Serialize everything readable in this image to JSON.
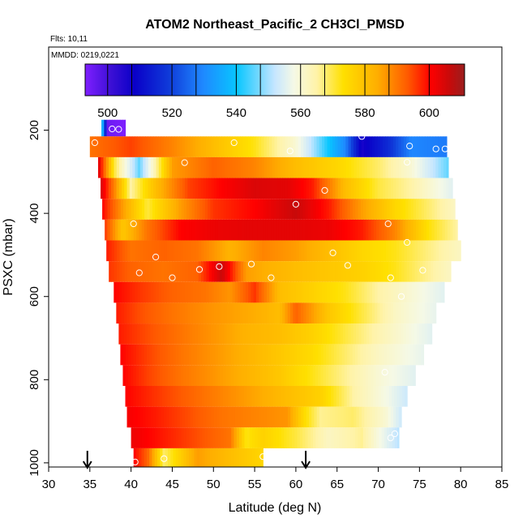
{
  "chart_data": {
    "type": "heatmap",
    "title": "ATOM2 Northeast_Pacific_2 CH3Cl_PMSD",
    "subtitle_flights": "Flts: 10,11",
    "subtitle_dates": "MMDD: 0219,0221",
    "xlabel": "Latitude (deg N)",
    "ylabel": "PSXC (mbar)",
    "xlim": [
      30,
      85
    ],
    "ylim": [
      1010,
      0
    ],
    "x_ticks": [
      "30",
      "35",
      "40",
      "45",
      "50",
      "55",
      "60",
      "65",
      "70",
      "75",
      "80",
      "85"
    ],
    "y_ticks": [
      "200",
      "400",
      "600",
      "800",
      "1000"
    ],
    "colorbar": {
      "range": [
        493,
        611
      ],
      "tick_labels": [
        "500",
        "520",
        "540",
        "560",
        "580",
        "600"
      ],
      "tick_values": [
        500,
        520,
        540,
        560,
        580,
        600
      ]
    },
    "arrows_latitude": [
      34.7,
      61.2
    ],
    "layers": [
      {
        "p_top": 175,
        "p_bot": 215,
        "lat_start": 36.4,
        "lat_end": 39.3,
        "lats": [
          36.4,
          37.2,
          39.3
        ],
        "vals": [
          545,
          495,
          493
        ]
      },
      {
        "p_top": 215,
        "p_bot": 265,
        "lat_start": 35.0,
        "lat_end": 78.3,
        "lats": [
          35,
          40,
          45,
          50,
          55,
          60,
          63,
          66,
          68,
          71,
          74,
          78.3
        ],
        "vals": [
          590,
          595,
          588,
          580,
          572,
          560,
          545,
          530,
          505,
          515,
          530,
          528
        ]
      },
      {
        "p_top": 265,
        "p_bot": 315,
        "lat_start": 36.0,
        "lat_end": 78.5,
        "lats": [
          36,
          38,
          41,
          45,
          50,
          55,
          60,
          65,
          70,
          74,
          78.5
        ],
        "vals": [
          605,
          570,
          545,
          585,
          592,
          588,
          580,
          575,
          568,
          560,
          545
        ]
      },
      {
        "p_top": 315,
        "p_bot": 365,
        "lat_start": 36.3,
        "lat_end": 79.0,
        "lats": [
          36.3,
          38,
          40,
          43,
          47,
          51,
          55,
          59,
          62,
          66,
          70,
          74,
          79
        ],
        "vals": [
          605,
          588,
          565,
          580,
          595,
          600,
          604,
          603,
          598,
          580,
          570,
          565,
          555
        ]
      },
      {
        "p_top": 365,
        "p_bot": 415,
        "lat_start": 36.5,
        "lat_end": 79.3,
        "lats": [
          36.5,
          39,
          42,
          46,
          50,
          55,
          60,
          64,
          68,
          72,
          76,
          79.3
        ],
        "vals": [
          600,
          585,
          570,
          585,
          596,
          600,
          606,
          598,
          585,
          575,
          568,
          562
        ]
      },
      {
        "p_top": 415,
        "p_bot": 465,
        "lat_start": 36.8,
        "lat_end": 79.6,
        "lats": [
          36.8,
          39,
          42,
          46,
          50,
          55,
          60,
          64,
          68,
          72,
          76,
          79.6
        ],
        "vals": [
          596,
          578,
          590,
          600,
          602,
          603,
          603,
          602,
          598,
          588,
          573,
          565
        ]
      },
      {
        "p_top": 465,
        "p_bot": 515,
        "lat_start": 37.0,
        "lat_end": 80.0,
        "lats": [
          37,
          40,
          44,
          48,
          52,
          56,
          60,
          64,
          68,
          72,
          76,
          80
        ],
        "vals": [
          598,
          590,
          592,
          590,
          582,
          588,
          585,
          580,
          575,
          572,
          567,
          562
        ]
      },
      {
        "p_top": 515,
        "p_bot": 565,
        "lat_start": 37.3,
        "lat_end": 78.8,
        "lats": [
          37.3,
          40,
          44,
          48,
          51,
          54,
          57,
          60,
          64,
          68,
          72,
          76,
          78.8
        ],
        "vals": [
          596,
          592,
          590,
          592,
          606,
          585,
          582,
          580,
          578,
          576,
          572,
          566,
          562
        ]
      },
      {
        "p_top": 565,
        "p_bot": 615,
        "lat_start": 37.9,
        "lat_end": 78.0,
        "lats": [
          37.9,
          41,
          45,
          49,
          52,
          55,
          58,
          62,
          66,
          70,
          74,
          78
        ],
        "vals": [
          600,
          596,
          592,
          590,
          586,
          596,
          580,
          576,
          572,
          565,
          560,
          555
        ]
      },
      {
        "p_top": 615,
        "p_bot": 665,
        "lat_start": 38.2,
        "lat_end": 77.0,
        "lats": [
          38.2,
          41,
          45,
          50,
          55,
          58,
          60,
          64,
          68,
          72,
          77
        ],
        "vals": [
          598,
          594,
          590,
          586,
          583,
          580,
          592,
          578,
          570,
          562,
          556
        ]
      },
      {
        "p_top": 665,
        "p_bot": 715,
        "lat_start": 38.5,
        "lat_end": 76.5,
        "lats": [
          38.5,
          42,
          46,
          50,
          54,
          58,
          62,
          66,
          70,
          73,
          76.5
        ],
        "vals": [
          598,
          594,
          590,
          586,
          582,
          580,
          576,
          570,
          564,
          560,
          555
        ]
      },
      {
        "p_top": 715,
        "p_bot": 765,
        "lat_start": 38.7,
        "lat_end": 75.5,
        "lats": [
          38.7,
          42,
          46,
          50,
          54,
          58,
          62,
          66,
          70,
          75.5
        ],
        "vals": [
          600,
          595,
          590,
          586,
          582,
          578,
          574,
          568,
          562,
          556
        ]
      },
      {
        "p_top": 765,
        "p_bot": 815,
        "lat_start": 39.0,
        "lat_end": 74.5,
        "lats": [
          39,
          42,
          46,
          50,
          54,
          58,
          62,
          66,
          70,
          74.5
        ],
        "vals": [
          600,
          595,
          590,
          586,
          582,
          578,
          572,
          566,
          560,
          555
        ]
      },
      {
        "p_top": 815,
        "p_bot": 865,
        "lat_start": 39.3,
        "lat_end": 73.5,
        "lats": [
          39.3,
          43,
          47,
          51,
          55,
          59,
          63,
          67,
          71,
          73.5
        ],
        "vals": [
          600,
          596,
          592,
          588,
          584,
          580,
          576,
          565,
          558,
          552
        ]
      },
      {
        "p_top": 865,
        "p_bot": 915,
        "lat_start": 39.5,
        "lat_end": 72.8,
        "lats": [
          39.5,
          43,
          47,
          51,
          55,
          59,
          61,
          63,
          67,
          71,
          72.8
        ],
        "vals": [
          601,
          598,
          594,
          590,
          588,
          586,
          574,
          566,
          568,
          560,
          552
        ]
      },
      {
        "p_top": 915,
        "p_bot": 965,
        "lat_start": 40.0,
        "lat_end": 72.5,
        "lats": [
          40,
          44,
          48,
          52,
          54,
          56,
          60,
          64,
          68,
          72.5
        ],
        "vals": [
          602,
          598,
          594,
          590,
          572,
          576,
          570,
          562,
          566,
          550
        ]
      },
      {
        "p_top": 965,
        "p_bot": 1010,
        "lat_start": 40.3,
        "lat_end": 56.0,
        "lats": [
          40.3,
          42,
          44,
          48,
          52,
          56
        ],
        "vals": [
          600,
          592,
          568,
          585,
          580,
          575
        ]
      }
    ],
    "sample_circles": [
      {
        "lat": 37.7,
        "p": 197
      },
      {
        "lat": 38.5,
        "p": 198
      },
      {
        "lat": 35.6,
        "p": 230
      },
      {
        "lat": 52.5,
        "p": 230
      },
      {
        "lat": 68.0,
        "p": 215
      },
      {
        "lat": 73.8,
        "p": 238
      },
      {
        "lat": 77.0,
        "p": 245
      },
      {
        "lat": 78.1,
        "p": 245
      },
      {
        "lat": 46.5,
        "p": 278
      },
      {
        "lat": 59.3,
        "p": 250
      },
      {
        "lat": 73.5,
        "p": 277
      },
      {
        "lat": 63.5,
        "p": 345
      },
      {
        "lat": 60.0,
        "p": 378
      },
      {
        "lat": 40.3,
        "p": 425
      },
      {
        "lat": 71.2,
        "p": 425
      },
      {
        "lat": 43.0,
        "p": 505
      },
      {
        "lat": 64.5,
        "p": 495
      },
      {
        "lat": 73.5,
        "p": 470
      },
      {
        "lat": 41.0,
        "p": 543
      },
      {
        "lat": 45.0,
        "p": 555
      },
      {
        "lat": 48.3,
        "p": 535
      },
      {
        "lat": 50.7,
        "p": 528
      },
      {
        "lat": 54.6,
        "p": 522
      },
      {
        "lat": 57.0,
        "p": 555
      },
      {
        "lat": 66.3,
        "p": 525
      },
      {
        "lat": 75.4,
        "p": 537
      },
      {
        "lat": 71.5,
        "p": 555
      },
      {
        "lat": 72.8,
        "p": 600
      },
      {
        "lat": 70.8,
        "p": 782
      },
      {
        "lat": 71.5,
        "p": 940
      },
      {
        "lat": 72.0,
        "p": 930
      },
      {
        "lat": 40.5,
        "p": 998
      },
      {
        "lat": 44.0,
        "p": 990
      },
      {
        "lat": 56.0,
        "p": 985
      }
    ]
  }
}
